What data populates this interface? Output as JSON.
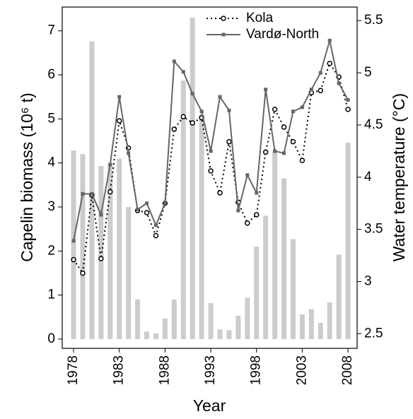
{
  "chart_data": {
    "type": "bar",
    "xlabel": "Year",
    "ylabel": "Capelin biomass (10⁶ t)",
    "y2label": "Water temperature (°C)",
    "x": [
      1978,
      1979,
      1980,
      1981,
      1982,
      1983,
      1984,
      1985,
      1986,
      1987,
      1988,
      1989,
      1990,
      1991,
      1992,
      1993,
      1994,
      1995,
      1996,
      1997,
      1998,
      1999,
      2000,
      2001,
      2002,
      2003,
      2004,
      2005,
      2006,
      2007,
      2008
    ],
    "series": [
      {
        "name": "Capelin biomass",
        "type": "bar",
        "color": "#cccccc",
        "values": [
          4.28,
          4.2,
          6.76,
          3.93,
          4.0,
          4.1,
          3.0,
          0.9,
          0.17,
          0.13,
          0.47,
          0.9,
          5.87,
          7.3,
          5.1,
          0.82,
          0.22,
          0.2,
          0.53,
          0.94,
          2.1,
          2.8,
          4.27,
          3.65,
          2.27,
          0.56,
          0.68,
          0.37,
          0.83,
          1.92,
          4.46
        ]
      },
      {
        "name": "Kola",
        "type": "line",
        "axis": "y2",
        "color": "#000000",
        "dash": "dotted",
        "marker": "circle",
        "values": [
          3.21,
          3.08,
          3.83,
          3.22,
          3.86,
          4.54,
          4.28,
          3.68,
          3.66,
          3.44,
          3.75,
          4.46,
          4.58,
          4.52,
          4.57,
          4.06,
          3.85,
          4.34,
          3.76,
          3.56,
          3.64,
          4.24,
          4.65,
          4.48,
          4.34,
          4.16,
          4.81,
          4.83,
          5.09,
          4.96,
          4.65
        ]
      },
      {
        "name": "Vardø-North",
        "type": "line",
        "axis": "y2",
        "color": "#666666",
        "dash": "solid",
        "marker": "square",
        "values": [
          3.39,
          3.84,
          3.84,
          3.64,
          4.12,
          4.77,
          4.23,
          3.69,
          3.75,
          3.54,
          3.75,
          5.11,
          5.01,
          4.8,
          4.63,
          4.25,
          4.77,
          4.64,
          3.68,
          4.02,
          3.85,
          4.84,
          4.25,
          4.23,
          4.63,
          4.67,
          4.84,
          5.0,
          5.31,
          4.9,
          4.74
        ]
      }
    ],
    "xlim": [
      1976.76,
      2009.0
    ],
    "xticks": [
      1978,
      1983,
      1988,
      1993,
      1998,
      2003,
      2008
    ],
    "ylim": [
      -0.21,
      7.54
    ],
    "yticks": [
      0,
      1,
      2,
      3,
      4,
      5,
      6,
      7
    ],
    "y2lim": [
      2.36,
      5.63
    ],
    "y2ticks": [
      2.5,
      3,
      3.5,
      4,
      4.5,
      5,
      5.5
    ],
    "legend": "top"
  }
}
